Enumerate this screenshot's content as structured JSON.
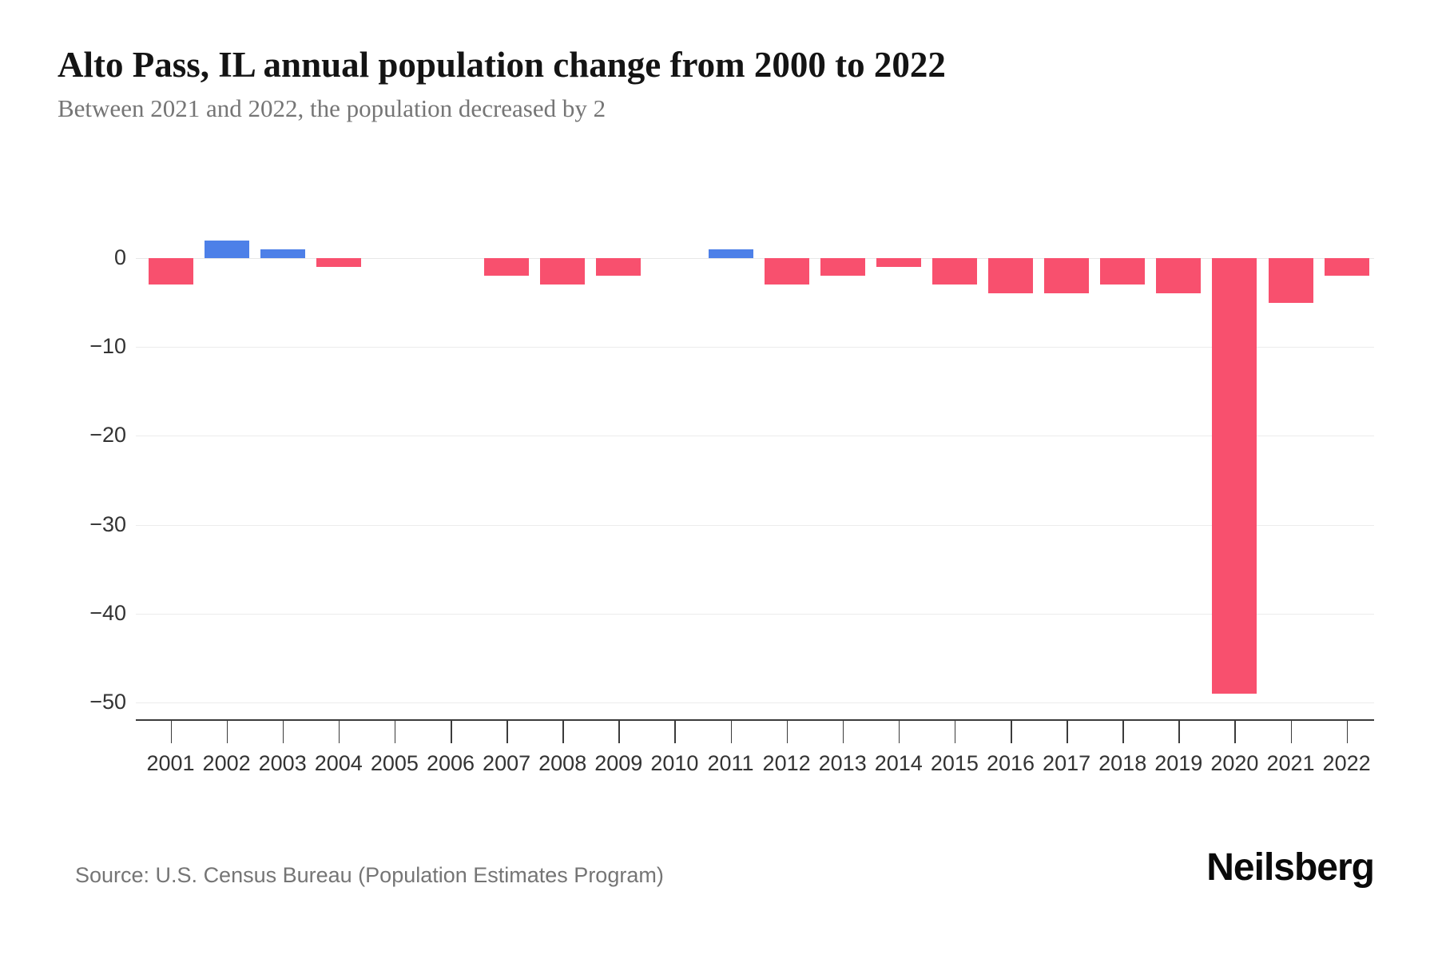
{
  "header": {
    "title": "Alto Pass, IL annual population change from 2000 to 2022",
    "subtitle": "Between 2021 and 2022, the population decreased by 2"
  },
  "footer": {
    "source": "Source: U.S. Census Bureau (Population Estimates Program)",
    "logo": "Neilsberg"
  },
  "chart_data": {
    "type": "bar",
    "title": "Alto Pass, IL annual population change from 2000 to 2022",
    "subtitle": "Between 2021 and 2022, the population decreased by 2",
    "categories": [
      "2001",
      "2002",
      "2003",
      "2004",
      "2005",
      "2006",
      "2007",
      "2008",
      "2009",
      "2010",
      "2011",
      "2012",
      "2013",
      "2014",
      "2015",
      "2016",
      "2017",
      "2018",
      "2019",
      "2020",
      "2021",
      "2022"
    ],
    "values": [
      -3,
      2,
      1,
      -1,
      0,
      0,
      -2,
      -3,
      -2,
      0,
      1,
      -3,
      -2,
      -1,
      -3,
      -4,
      -4,
      -3,
      -4,
      -49,
      -5,
      -2
    ],
    "xlabel": "",
    "ylabel": "",
    "yticks": [
      0,
      -10,
      -20,
      -30,
      -40,
      -50
    ],
    "ylim": [
      -52,
      4
    ],
    "grid": true,
    "legend": false,
    "colors": {
      "positive": "#4d80e8",
      "negative": "#f8506e",
      "gridline": "#ececec",
      "axis": "#3b3b3b",
      "tick_text": "#333333",
      "title_text": "#141414",
      "subtitle_text": "#757575"
    }
  }
}
